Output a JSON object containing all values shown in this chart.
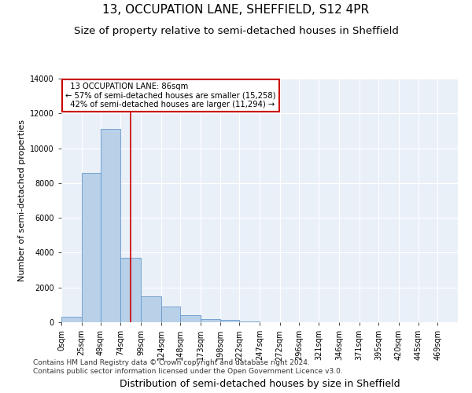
{
  "title": "13, OCCUPATION LANE, SHEFFIELD, S12 4PR",
  "subtitle": "Size of property relative to semi-detached houses in Sheffield",
  "xlabel": "Distribution of semi-detached houses by size in Sheffield",
  "ylabel": "Number of semi-detached properties",
  "property_size": 86,
  "property_label": "13 OCCUPATION LANE: 86sqm",
  "pct_smaller": 57,
  "n_smaller": 15258,
  "pct_larger": 42,
  "n_larger": 11294,
  "bar_color": "#b8d0e8",
  "bar_edge_color": "#6699cc",
  "vline_color": "#cc0000",
  "annotation_box_color": "#cc0000",
  "background_color": "#eaf0f8",
  "bin_edges": [
    0,
    25,
    49,
    74,
    99,
    124,
    148,
    173,
    198,
    222,
    247,
    272,
    296,
    321,
    346,
    371,
    395,
    420,
    445,
    469,
    494
  ],
  "bin_counts": [
    300,
    8600,
    11100,
    3700,
    1500,
    900,
    400,
    200,
    130,
    50,
    0,
    0,
    0,
    0,
    0,
    0,
    0,
    0,
    0,
    0
  ],
  "ylim": [
    0,
    14000
  ],
  "yticks": [
    0,
    2000,
    4000,
    6000,
    8000,
    10000,
    12000,
    14000
  ],
  "footer_line1": "Contains HM Land Registry data © Crown copyright and database right 2024.",
  "footer_line2": "Contains public sector information licensed under the Open Government Licence v3.0.",
  "title_fontsize": 11,
  "subtitle_fontsize": 9.5,
  "xlabel_fontsize": 9,
  "ylabel_fontsize": 8,
  "footer_fontsize": 6.5,
  "tick_fontsize": 7
}
